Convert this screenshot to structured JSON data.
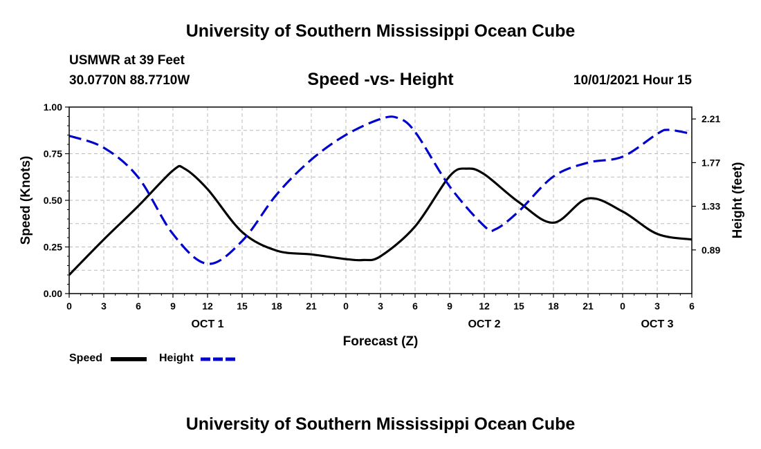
{
  "header": {
    "title": "University of Southern Mississippi Ocean Cube",
    "station": "USMWR at 39 Feet",
    "coords": "30.0770N  88.7710W",
    "subtitle": "Speed -vs- Height",
    "datetime": "10/01/2021 Hour 15"
  },
  "footer": {
    "title": "University of Southern Mississippi Ocean Cube"
  },
  "colors": {
    "speed": "#000000",
    "height": "#0000cc",
    "grid": "#bbbbbb"
  },
  "chart_data": {
    "type": "line",
    "xlabel": "Forecast (Z)",
    "ylabel": "Speed (Knots)",
    "y2label": "Height (feet)",
    "xlim": [
      0,
      54
    ],
    "ylim": [
      0,
      1
    ],
    "y2lim": [
      0.45,
      2.33
    ],
    "xticks": [
      0,
      3,
      6,
      9,
      12,
      15,
      18,
      21,
      24,
      27,
      30,
      33,
      36,
      39,
      42,
      45,
      48,
      51,
      54
    ],
    "xtick_labels": [
      "0",
      "3",
      "6",
      "9",
      "12",
      "15",
      "18",
      "21",
      "0",
      "3",
      "6",
      "9",
      "12",
      "15",
      "18",
      "21",
      "0",
      "3",
      "6"
    ],
    "yticks": [
      0,
      0.25,
      0.5,
      0.75,
      1.0
    ],
    "ytick_labels": [
      "0.00",
      "0.25",
      "0.50",
      "0.75",
      "1.00"
    ],
    "y2ticks": [
      0.89,
      1.33,
      1.77,
      2.21
    ],
    "y2tick_labels": [
      "0.89",
      "1.33",
      "1.77",
      "2.21"
    ],
    "day_labels": [
      {
        "x": 12,
        "label": "OCT 1"
      },
      {
        "x": 36,
        "label": "OCT 2"
      },
      {
        "x": 51,
        "label": "OCT 3"
      }
    ],
    "grid": true,
    "legend": "bottom-left",
    "series": [
      {
        "name": "Speed",
        "axis": "left",
        "style": "solid",
        "x": [
          0,
          3,
          6,
          9,
          10,
          12,
          15,
          18,
          21,
          24,
          25.5,
          27,
          30,
          33,
          34.5,
          36,
          39,
          42,
          45,
          48,
          51,
          54
        ],
        "values": [
          0.1,
          0.29,
          0.47,
          0.66,
          0.67,
          0.56,
          0.33,
          0.23,
          0.21,
          0.185,
          0.18,
          0.2,
          0.36,
          0.63,
          0.67,
          0.64,
          0.49,
          0.38,
          0.51,
          0.44,
          0.32,
          0.29
        ]
      },
      {
        "name": "Height",
        "axis": "right",
        "style": "dashed",
        "x": [
          0,
          3,
          6,
          9,
          12,
          15,
          18,
          21,
          24,
          27,
          28.5,
          30,
          33,
          36,
          37,
          39,
          42,
          45,
          48,
          51,
          52,
          54
        ],
        "values": [
          2.04,
          1.92,
          1.62,
          1.05,
          0.75,
          0.98,
          1.45,
          1.8,
          2.05,
          2.21,
          2.22,
          2.08,
          1.53,
          1.13,
          1.1,
          1.28,
          1.63,
          1.77,
          1.83,
          2.06,
          2.1,
          2.06
        ]
      }
    ]
  }
}
